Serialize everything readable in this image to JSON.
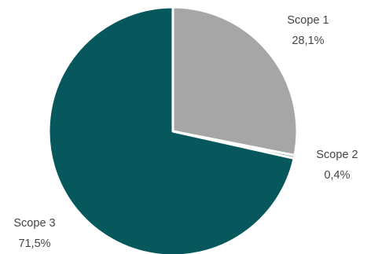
{
  "chart_data": {
    "type": "pie",
    "title": "",
    "slices": [
      {
        "name": "Scope 1",
        "value": 28.1,
        "display": "28,1%",
        "color": "#a6a6a6"
      },
      {
        "name": "Scope 2",
        "value": 0.4,
        "display": "0,4%",
        "color": "#7fa8aa"
      },
      {
        "name": "Scope 3",
        "value": 71.5,
        "display": "71,5%",
        "color": "#06585d"
      }
    ],
    "legend": "none",
    "labels_outside": true
  }
}
